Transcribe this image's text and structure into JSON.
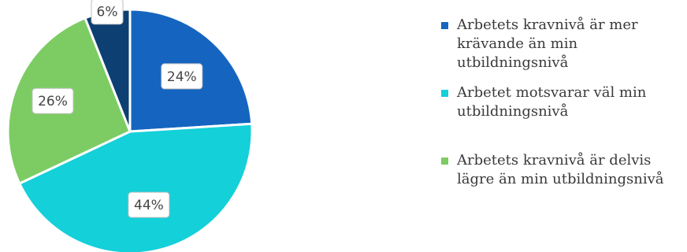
{
  "chart_data": {
    "type": "pie",
    "title": "",
    "slices": [
      {
        "name": "Arbetets kravnivå är mer krävande än min utbildningsnivå",
        "value": 24,
        "label": "24%",
        "color": "#1565c0"
      },
      {
        "name": "Arbetet motsvarar väl min utbildningsnivå",
        "value": 44,
        "label": "44%",
        "color": "#14d0d9"
      },
      {
        "name": "Arbetets kravnivå är delvis lägre än min utbildningsnivå",
        "value": 26,
        "label": "26%",
        "color": "#7ccc63"
      },
      {
        "name": "",
        "value": 6,
        "label": "6%",
        "color": "#0d3f73"
      }
    ],
    "legend": {
      "placement": "right",
      "entries": [
        {
          "text": "Arbetets kravnivå är mer krävande än min utbildningsnivå",
          "color": "#1565c0"
        },
        {
          "text": "Arbetet motsvarar väl min utbildningsnivå",
          "color": "#14d0d9"
        },
        {
          "text": "Arbetets kravnivå är delvis lägre än min utbildningsnivå",
          "color": "#7ccc63"
        }
      ]
    }
  }
}
